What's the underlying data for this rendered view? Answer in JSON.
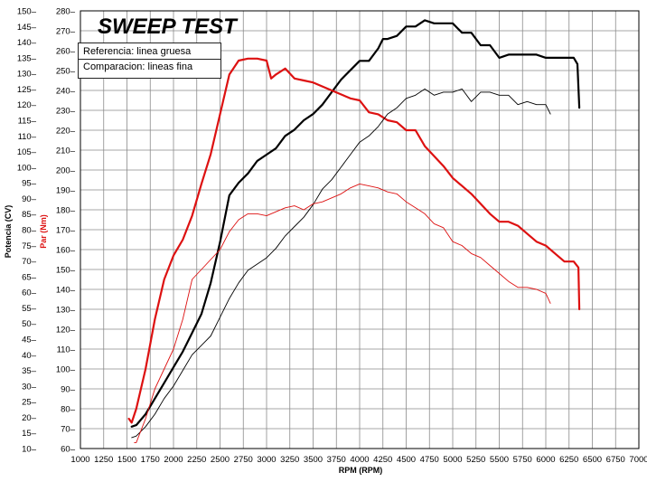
{
  "chart_data": {
    "type": "line",
    "title": "SWEEP TEST",
    "xlabel": "RPM (RPM)",
    "ylabel_left": "Potencia (CV)",
    "ylabel_right": "Par (Nm)",
    "xlim": [
      1000,
      7000
    ],
    "ylim_power": [
      10,
      150
    ],
    "ylim_torque": [
      60,
      280
    ],
    "x_ticks": [
      "1000",
      "1250",
      "1500",
      "1750",
      "2000",
      "2250",
      "2500",
      "2750",
      "3000",
      "3250",
      "3500",
      "3750",
      "4000",
      "4250",
      "4500",
      "4750",
      "5000",
      "5250",
      "5500",
      "5750",
      "6000",
      "6250",
      "6500",
      "6750",
      "7000"
    ],
    "power_ticks": [
      "10–",
      "15–",
      "20–",
      "25–",
      "30–",
      "35–",
      "40–",
      "45–",
      "50–",
      "55–",
      "60–",
      "65–",
      "70–",
      "75–",
      "80–",
      "85–",
      "90–",
      "95–",
      "100–",
      "105–",
      "110–",
      "115–",
      "120–",
      "125–",
      "130–",
      "135–",
      "140–",
      "145–",
      "150–"
    ],
    "torque_ticks": [
      "60–",
      "70–",
      "80–",
      "90–",
      "100–",
      "110–",
      "120–",
      "130–",
      "140–",
      "150–",
      "160–",
      "170–",
      "180–",
      "190–",
      "200–",
      "210–",
      "220–",
      "230–",
      "240–",
      "250–",
      "260–",
      "270–",
      "280–"
    ],
    "grid": true,
    "legend": {
      "position": "top-left",
      "entries": [
        "Referencia: linea gruesa",
        "Comparacion: lineas fina"
      ]
    },
    "colors": {
      "power": "#000000",
      "torque": "#dd1111"
    },
    "series": [
      {
        "unit": "CV",
        "axis": "left",
        "color": "#000000",
        "width": "thick",
        "points": [
          [
            1550,
            17
          ],
          [
            1600,
            17.5
          ],
          [
            1700,
            21
          ],
          [
            1800,
            26
          ],
          [
            1900,
            31
          ],
          [
            2000,
            36
          ],
          [
            2100,
            41
          ],
          [
            2200,
            47
          ],
          [
            2300,
            53
          ],
          [
            2400,
            63
          ],
          [
            2500,
            76
          ],
          [
            2600,
            91
          ],
          [
            2700,
            95
          ],
          [
            2800,
            98
          ],
          [
            2900,
            102
          ],
          [
            3000,
            104
          ],
          [
            3100,
            106
          ],
          [
            3200,
            110
          ],
          [
            3300,
            112
          ],
          [
            3400,
            115
          ],
          [
            3500,
            117
          ],
          [
            3600,
            120
          ],
          [
            3700,
            124
          ],
          [
            3800,
            128
          ],
          [
            3900,
            131
          ],
          [
            4000,
            134
          ],
          [
            4100,
            134
          ],
          [
            4200,
            138
          ],
          [
            4250,
            141
          ],
          [
            4300,
            141
          ],
          [
            4400,
            142
          ],
          [
            4500,
            145
          ],
          [
            4600,
            145
          ],
          [
            4700,
            147
          ],
          [
            4800,
            146
          ],
          [
            4900,
            146
          ],
          [
            5000,
            146
          ],
          [
            5100,
            143
          ],
          [
            5200,
            143
          ],
          [
            5300,
            139
          ],
          [
            5400,
            139
          ],
          [
            5500,
            135
          ],
          [
            5600,
            136
          ],
          [
            5700,
            136
          ],
          [
            5800,
            136
          ],
          [
            5900,
            136
          ],
          [
            6000,
            135
          ],
          [
            6100,
            135
          ],
          [
            6200,
            135
          ],
          [
            6300,
            135
          ],
          [
            6340,
            133
          ],
          [
            6360,
            119
          ]
        ]
      },
      {
        "unit": "Nm",
        "axis": "right",
        "color": "#dd1111",
        "width": "thick",
        "points": [
          [
            1520,
            75
          ],
          [
            1550,
            73
          ],
          [
            1600,
            80
          ],
          [
            1700,
            100
          ],
          [
            1800,
            125
          ],
          [
            1900,
            145
          ],
          [
            2000,
            157
          ],
          [
            2100,
            165
          ],
          [
            2200,
            177
          ],
          [
            2300,
            193
          ],
          [
            2400,
            208
          ],
          [
            2500,
            228
          ],
          [
            2600,
            248
          ],
          [
            2700,
            255
          ],
          [
            2800,
            256
          ],
          [
            2900,
            256
          ],
          [
            3000,
            255
          ],
          [
            3050,
            246
          ],
          [
            3100,
            248
          ],
          [
            3200,
            251
          ],
          [
            3300,
            246
          ],
          [
            3400,
            245
          ],
          [
            3500,
            244
          ],
          [
            3600,
            242
          ],
          [
            3700,
            240
          ],
          [
            3800,
            238
          ],
          [
            3900,
            236
          ],
          [
            4000,
            235
          ],
          [
            4100,
            229
          ],
          [
            4200,
            228
          ],
          [
            4300,
            225
          ],
          [
            4400,
            224
          ],
          [
            4500,
            220
          ],
          [
            4600,
            220
          ],
          [
            4700,
            212
          ],
          [
            4800,
            207
          ],
          [
            4900,
            202
          ],
          [
            5000,
            196
          ],
          [
            5100,
            192
          ],
          [
            5200,
            188
          ],
          [
            5300,
            183
          ],
          [
            5400,
            178
          ],
          [
            5500,
            174
          ],
          [
            5600,
            174
          ],
          [
            5700,
            172
          ],
          [
            5800,
            168
          ],
          [
            5900,
            164
          ],
          [
            6000,
            162
          ],
          [
            6100,
            158
          ],
          [
            6200,
            154
          ],
          [
            6300,
            154
          ],
          [
            6350,
            151
          ],
          [
            6360,
            130
          ]
        ]
      },
      {
        "unit": "CV",
        "axis": "left",
        "color": "#000000",
        "width": "thin",
        "points": [
          [
            1550,
            13.5
          ],
          [
            1600,
            14
          ],
          [
            1700,
            17
          ],
          [
            1800,
            21
          ],
          [
            1900,
            26
          ],
          [
            2000,
            30
          ],
          [
            2100,
            35
          ],
          [
            2200,
            40
          ],
          [
            2300,
            43
          ],
          [
            2400,
            46
          ],
          [
            2500,
            52
          ],
          [
            2600,
            58
          ],
          [
            2700,
            63
          ],
          [
            2800,
            67
          ],
          [
            2900,
            69
          ],
          [
            3000,
            71
          ],
          [
            3100,
            74
          ],
          [
            3200,
            78
          ],
          [
            3300,
            81
          ],
          [
            3400,
            84
          ],
          [
            3500,
            88
          ],
          [
            3600,
            93
          ],
          [
            3700,
            96
          ],
          [
            3800,
            100
          ],
          [
            3900,
            104
          ],
          [
            4000,
            108
          ],
          [
            4100,
            110
          ],
          [
            4200,
            113
          ],
          [
            4300,
            117
          ],
          [
            4400,
            119
          ],
          [
            4500,
            122
          ],
          [
            4600,
            123
          ],
          [
            4700,
            125
          ],
          [
            4800,
            123
          ],
          [
            4900,
            124
          ],
          [
            5000,
            124
          ],
          [
            5100,
            125
          ],
          [
            5200,
            121
          ],
          [
            5300,
            124
          ],
          [
            5400,
            124
          ],
          [
            5500,
            123
          ],
          [
            5600,
            123
          ],
          [
            5700,
            120
          ],
          [
            5800,
            121
          ],
          [
            5900,
            120
          ],
          [
            6000,
            120
          ],
          [
            6050,
            117
          ]
        ]
      },
      {
        "unit": "Nm",
        "axis": "right",
        "color": "#dd1111",
        "width": "thin",
        "points": [
          [
            1580,
            63
          ],
          [
            1600,
            63
          ],
          [
            1700,
            75
          ],
          [
            1800,
            90
          ],
          [
            1900,
            100
          ],
          [
            2000,
            110
          ],
          [
            2100,
            125
          ],
          [
            2200,
            145
          ],
          [
            2300,
            150
          ],
          [
            2400,
            155
          ],
          [
            2500,
            160
          ],
          [
            2600,
            169
          ],
          [
            2700,
            175
          ],
          [
            2800,
            178
          ],
          [
            2900,
            178
          ],
          [
            3000,
            177
          ],
          [
            3100,
            179
          ],
          [
            3200,
            181
          ],
          [
            3300,
            182
          ],
          [
            3400,
            180
          ],
          [
            3500,
            183
          ],
          [
            3600,
            184
          ],
          [
            3700,
            186
          ],
          [
            3800,
            188
          ],
          [
            3900,
            191
          ],
          [
            4000,
            193
          ],
          [
            4100,
            192
          ],
          [
            4200,
            191
          ],
          [
            4300,
            189
          ],
          [
            4400,
            188
          ],
          [
            4500,
            184
          ],
          [
            4600,
            181
          ],
          [
            4700,
            178
          ],
          [
            4800,
            173
          ],
          [
            4900,
            171
          ],
          [
            5000,
            164
          ],
          [
            5100,
            162
          ],
          [
            5200,
            158
          ],
          [
            5300,
            156
          ],
          [
            5400,
            152
          ],
          [
            5500,
            148
          ],
          [
            5600,
            144
          ],
          [
            5700,
            141
          ],
          [
            5800,
            141
          ],
          [
            5900,
            140
          ],
          [
            6000,
            138
          ],
          [
            6050,
            133
          ]
        ]
      }
    ]
  }
}
